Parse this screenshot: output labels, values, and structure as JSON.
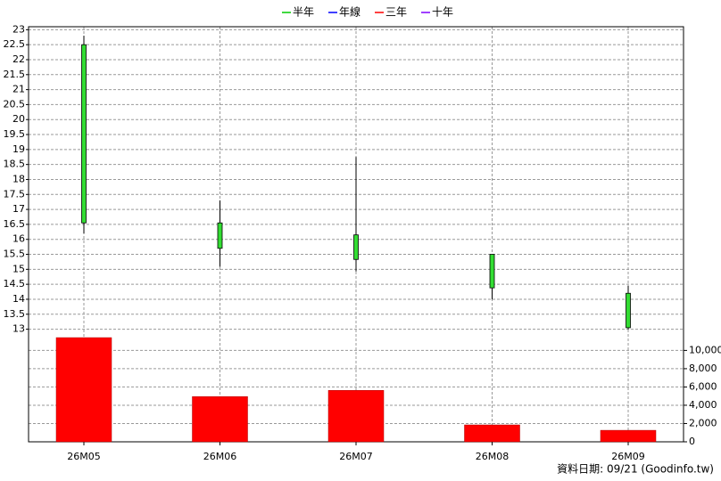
{
  "chart_data": {
    "type": "candlestick",
    "legend": [
      {
        "name": "半年",
        "color": "#00cc00"
      },
      {
        "name": "年線",
        "color": "#0000ff"
      },
      {
        "name": "三年",
        "color": "#ff0000"
      },
      {
        "name": "十年",
        "color": "#8000ff"
      }
    ],
    "categories": [
      "26M05",
      "26M06",
      "26M07",
      "26M08",
      "26M09"
    ],
    "open": [
      22.5,
      16.55,
      16.15,
      15.5,
      14.2
    ],
    "high": [
      22.8,
      17.3,
      18.75,
      15.5,
      14.45
    ],
    "low": [
      16.2,
      15.08,
      14.93,
      14.0,
      13.0
    ],
    "close": [
      16.55,
      15.7,
      15.33,
      14.38,
      13.05
    ],
    "candle_color": "#33dd33",
    "volume": [
      11400,
      4950,
      5630,
      1850,
      1260
    ],
    "volume_color": "#ff0000",
    "ylim": [
      12.75,
      23.1
    ],
    "yticks": [
      13,
      13.5,
      14,
      14.5,
      15,
      15.5,
      16,
      16.5,
      17,
      17.5,
      18,
      18.5,
      19,
      19.5,
      20,
      20.5,
      21,
      21.5,
      22,
      22.5,
      23
    ],
    "y2lim": [
      0,
      11500
    ],
    "y2ticks": [
      0,
      {
        "value": 2000,
        "label": "2,000"
      },
      {
        "value": 4000,
        "label": "4,000"
      },
      {
        "value": 6000,
        "label": "6,000"
      },
      {
        "value": 8000,
        "label": "8,000"
      },
      {
        "value": 10000,
        "label": "10,000"
      }
    ],
    "grid": true,
    "footer": "資料日期: 09/21 (Goodinfo.tw)"
  }
}
